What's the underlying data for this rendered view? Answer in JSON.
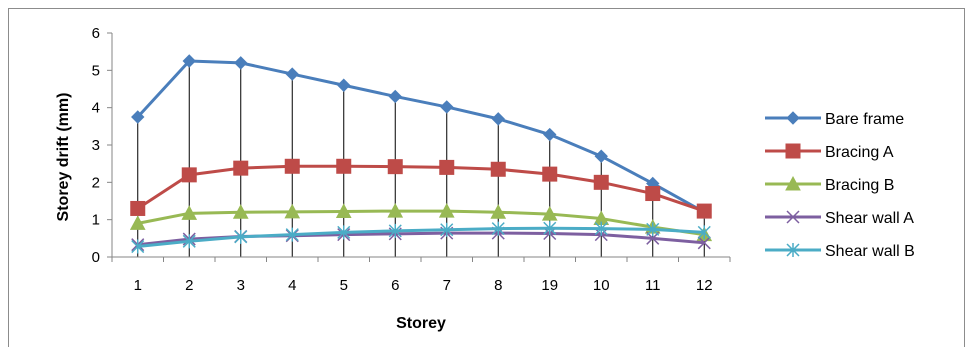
{
  "chart_data": {
    "type": "line",
    "title": "",
    "xlabel": "Storey",
    "ylabel": "Storey drift (mm)",
    "categories": [
      "1",
      "2",
      "3",
      "4",
      "5",
      "6",
      "7",
      "8",
      "19",
      "10",
      "11",
      "12"
    ],
    "ylim": [
      0,
      6
    ],
    "yticks": [
      "0",
      "1",
      "2",
      "3",
      "4",
      "5",
      "6"
    ],
    "grid": "vertical drop lines at each category",
    "legend_position": "right",
    "series": [
      {
        "name": "Bare frame",
        "color": "#4a7ebb",
        "marker": "diamond",
        "values": [
          3.75,
          5.25,
          5.2,
          4.9,
          4.6,
          4.3,
          4.02,
          3.7,
          3.28,
          2.7,
          1.97,
          1.2
        ]
      },
      {
        "name": "Bracing A",
        "color": "#be4b48",
        "marker": "square",
        "values": [
          1.3,
          2.2,
          2.38,
          2.43,
          2.43,
          2.42,
          2.4,
          2.35,
          2.22,
          2.0,
          1.7,
          1.23
        ]
      },
      {
        "name": "Bracing B",
        "color": "#98b954",
        "marker": "triangle",
        "values": [
          0.9,
          1.17,
          1.2,
          1.21,
          1.22,
          1.23,
          1.23,
          1.2,
          1.15,
          1.03,
          0.8,
          0.6
        ]
      },
      {
        "name": "Shear wall A",
        "color": "#7d5fa0",
        "marker": "x",
        "values": [
          0.33,
          0.48,
          0.55,
          0.57,
          0.6,
          0.62,
          0.64,
          0.64,
          0.63,
          0.6,
          0.5,
          0.38
        ]
      },
      {
        "name": "Shear wall B",
        "color": "#4bacc6",
        "marker": "star",
        "values": [
          0.28,
          0.42,
          0.54,
          0.6,
          0.66,
          0.7,
          0.73,
          0.76,
          0.77,
          0.76,
          0.74,
          0.66
        ]
      }
    ]
  }
}
